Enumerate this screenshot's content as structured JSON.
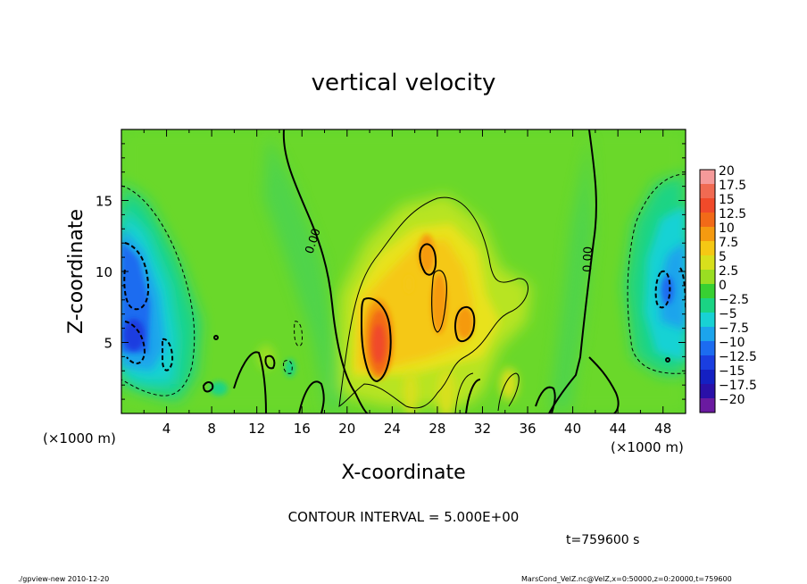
{
  "chart_data": {
    "type": "heatmap",
    "title": "vertical velocity",
    "xlabel": "X-coordinate",
    "ylabel": "Z-coordinate",
    "x_unit_label": "(×1000 m)",
    "y_unit_label": "(×1000 m)",
    "xlim": [
      0,
      50
    ],
    "ylim": [
      0,
      20
    ],
    "x_ticks": [
      4,
      8,
      12,
      16,
      20,
      24,
      28,
      32,
      36,
      40,
      44,
      48
    ],
    "y_ticks": [
      5,
      10,
      15
    ],
    "contour_interval_text": "CONTOUR INTERVAL = 5.000E+00",
    "time_text": "t=759600 s",
    "zero_contour_labels": [
      "0.00",
      "0.00"
    ],
    "colorbar": {
      "labels": [
        "20",
        "17.5",
        "15",
        "12.5",
        "10",
        "7.5",
        "5",
        "2.5",
        "0",
        "−2.5",
        "−5",
        "−7.5",
        "−10",
        "−12.5",
        "−15",
        "−17.5",
        "−20"
      ],
      "colors": [
        "#f59a9a",
        "#f06a52",
        "#f04a2a",
        "#f26a18",
        "#f59a10",
        "#f5c814",
        "#d8e01c",
        "#9ade22",
        "#38d032",
        "#1ad484",
        "#18d2d4",
        "#1ca4ec",
        "#1c6cf0",
        "#1a3ee0",
        "#1420c2",
        "#2a10a8",
        "#6a1aa0"
      ]
    },
    "features": [
      {
        "kind": "updraft_max",
        "x": 23,
        "z": 5.5,
        "value": 15
      },
      {
        "kind": "updraft",
        "x": 27,
        "z": 10,
        "value": 10
      },
      {
        "kind": "updraft",
        "x": 30,
        "z": 6,
        "value": 10
      },
      {
        "kind": "downdraft",
        "x": 2,
        "z": 7,
        "value": -10
      },
      {
        "kind": "downdraft",
        "x": 48,
        "z": 8,
        "value": -7.5
      }
    ]
  },
  "footer": {
    "left": "./gpview-new   2010-12-20",
    "right": "MarsCond_VelZ.nc@VelZ,x=0:50000,z=0:20000,t=759600"
  }
}
